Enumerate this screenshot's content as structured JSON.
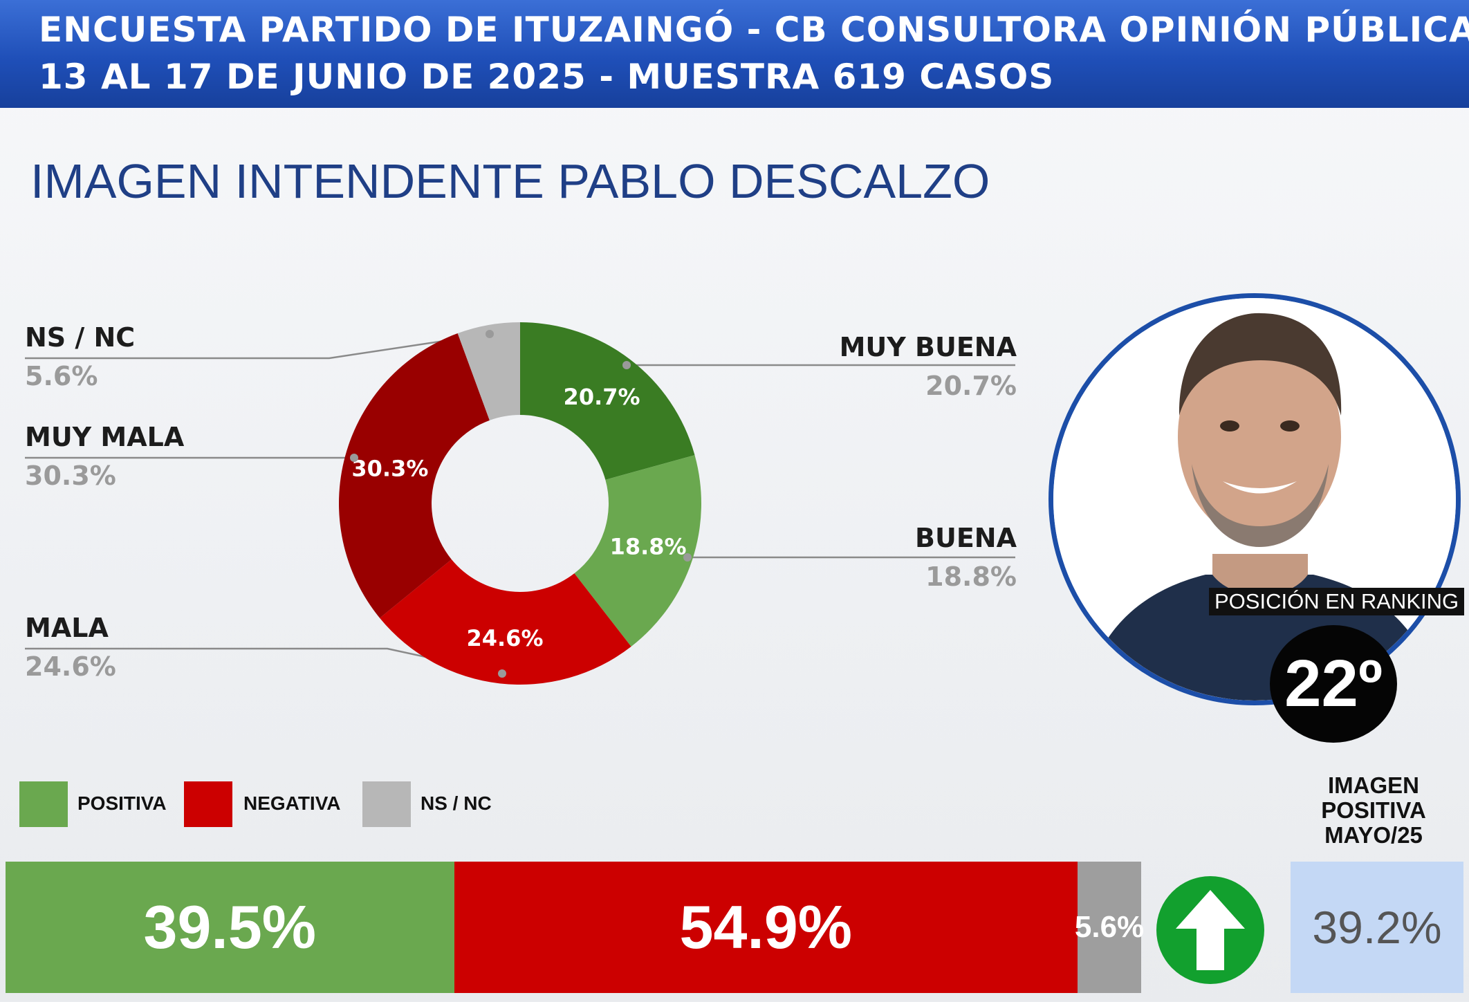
{
  "header": {
    "line1": "ENCUESTA PARTIDO DE ITUZAINGÓ - CB CONSULTORA OPINIÓN PÚBLICA",
    "line2": "13 AL 17 DE JUNIO DE 2025 - MUESTRA 619 CASOS"
  },
  "page_title": "IMAGEN INTENDENTE  PABLO DESCALZO",
  "colors": {
    "muy_buena": "#3a7c23",
    "buena": "#6aa84f",
    "mala": "#cc0000",
    "muy_mala": "#990000",
    "ns_nc": "#b7b7b7",
    "header_blue": "#1f4fb8"
  },
  "chart_data": [
    {
      "type": "pie",
      "title": "IMAGEN INTENDENTE  PABLO DESCALZO",
      "categories": [
        "MUY BUENA",
        "BUENA",
        "MALA",
        "MUY MALA",
        "NS / NC"
      ],
      "values": [
        20.7,
        18.8,
        24.6,
        30.3,
        5.6
      ],
      "value_labels": [
        "20.7%",
        "18.8%",
        "24.6%",
        "30.3%",
        "5.6%"
      ],
      "style": "donut"
    },
    {
      "type": "bar",
      "orientation": "horizontal-stacked",
      "legend": [
        "POSITIVA",
        "NEGATIVA",
        "NS / NC"
      ],
      "categories": [
        "POSITIVA",
        "NEGATIVA",
        "NS / NC"
      ],
      "values": [
        39.5,
        54.9,
        5.6
      ],
      "value_labels": [
        "39.5%",
        "54.9%",
        "5.6%"
      ]
    }
  ],
  "labels": {
    "ns_nc": {
      "name": "NS / NC",
      "value": "5.6%"
    },
    "muy_mala": {
      "name": "MUY MALA",
      "value": "30.3%"
    },
    "mala": {
      "name": "MALA",
      "value": "24.6%"
    },
    "muy_buena": {
      "name": "MUY BUENA",
      "value": "20.7%"
    },
    "buena": {
      "name": "BUENA",
      "value": "18.8%"
    }
  },
  "legend": {
    "positiva": "POSITIVA",
    "negativa": "NEGATIVA",
    "ns_nc": "NS / NC"
  },
  "bar": {
    "positiva": "39.5%",
    "negativa": "54.9%",
    "ns_nc": "5.6%"
  },
  "ranking": {
    "label": "POSICIÓN EN RANKING",
    "value": "22º"
  },
  "previous": {
    "title_line1": "IMAGEN",
    "title_line2": "POSITIVA",
    "title_line3": "MAYO/25",
    "value": "39.2%",
    "trend_icon": "up-arrow-icon"
  }
}
